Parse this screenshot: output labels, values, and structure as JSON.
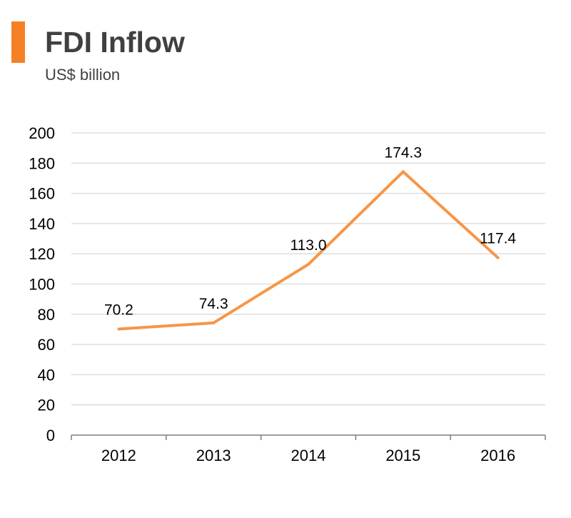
{
  "header": {
    "title": "FDI Inflow",
    "subtitle": "US$ billion"
  },
  "colors": {
    "accent": "#F58025",
    "line": "#F79646",
    "gridline": "#D9D9D9",
    "axis": "#7F7F7F",
    "text": "#000000",
    "title": "#404040"
  },
  "chart_data": {
    "type": "line",
    "title": "FDI Inflow",
    "subtitle": "US$ billion",
    "xlabel": "",
    "ylabel": "",
    "categories": [
      "2012",
      "2013",
      "2014",
      "2015",
      "2016"
    ],
    "series": [
      {
        "values": [
          70.2,
          74.3,
          113.0,
          174.3,
          117.4
        ],
        "labels": [
          "70.2",
          "74.3",
          "113.0",
          "174.3",
          "117.4"
        ]
      }
    ],
    "ylim": [
      0,
      200
    ],
    "yticks": [
      "0",
      "20",
      "40",
      "60",
      "80",
      "100",
      "120",
      "140",
      "160",
      "180",
      "200"
    ],
    "grid": true,
    "legend": "none"
  }
}
